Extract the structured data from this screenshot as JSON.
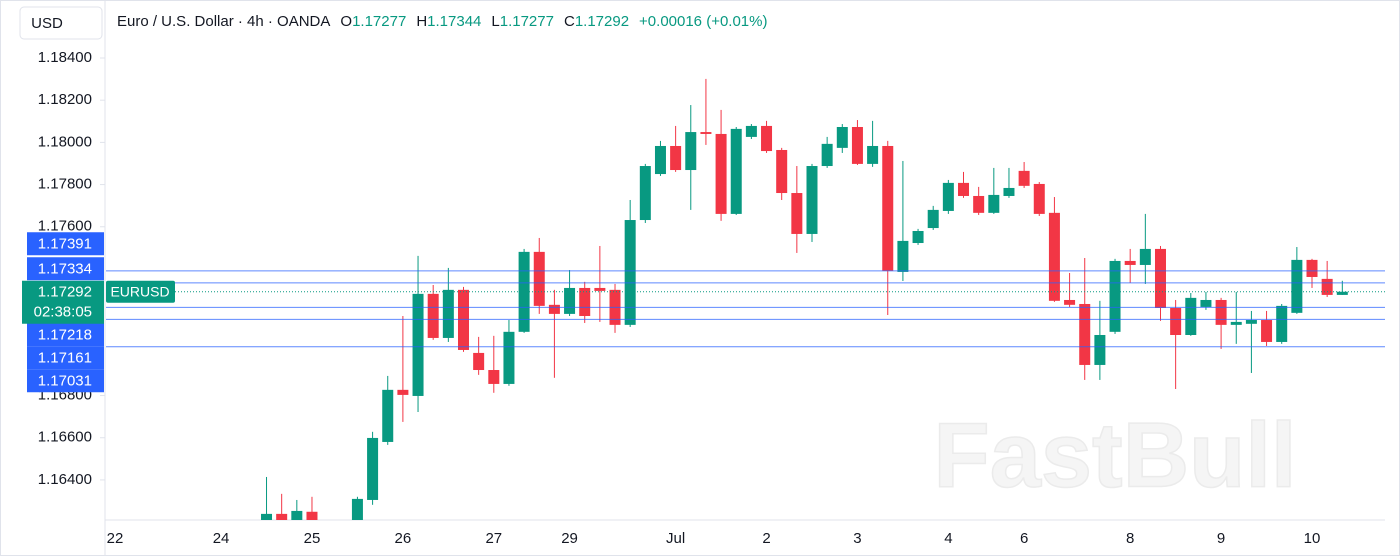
{
  "chart_data": {
    "type": "candlestick",
    "currency": "USD",
    "title": "Euro / U.S. Dollar · 4h · OANDA",
    "ohlc_labels": [
      "O",
      "H",
      "L",
      "C"
    ],
    "ohlc": [
      1.17277,
      1.17344,
      1.17277,
      1.17292
    ],
    "change_label": "+0.00016 (+0.01%)",
    "symbol": "EURUSD",
    "last_price": 1.17292,
    "countdown": "02:38:05",
    "watermark": "FastBull",
    "up_color": "#089981",
    "down_color": "#f23645",
    "line_color": "#2962ff",
    "price_lines": [
      1.17391,
      1.17334,
      1.17218,
      1.17161,
      1.17031
    ],
    "ylim": [
      1.1621,
      1.18675
    ],
    "yticks": [
      {
        "value": 1.184,
        "label": "1.18400"
      },
      {
        "value": 1.182,
        "label": "1.18200"
      },
      {
        "value": 1.18,
        "label": "1.18000"
      },
      {
        "value": 1.178,
        "label": "1.17800"
      },
      {
        "value": 1.176,
        "label": "1.17600"
      },
      {
        "value": 1.168,
        "label": "1.16800"
      },
      {
        "value": 1.166,
        "label": "1.16600"
      },
      {
        "value": 1.164,
        "label": "1.16400"
      }
    ],
    "categories": [
      "22",
      null,
      null,
      null,
      null,
      null,
      null,
      "24",
      null,
      null,
      null,
      null,
      null,
      "25",
      null,
      null,
      null,
      null,
      null,
      "26",
      null,
      null,
      null,
      null,
      null,
      "27",
      null,
      null,
      null,
      null,
      "29",
      null,
      null,
      null,
      null,
      null,
      null,
      "Jul",
      null,
      null,
      null,
      null,
      null,
      "2",
      null,
      null,
      null,
      null,
      null,
      "3",
      null,
      null,
      null,
      null,
      null,
      "4",
      null,
      null,
      null,
      null,
      "6",
      null,
      null,
      null,
      null,
      null,
      null,
      "8",
      null,
      null,
      null,
      null,
      null,
      "9",
      null,
      null,
      null,
      null,
      null,
      "10",
      null,
      null
    ],
    "candles": {
      "open": [
        null,
        null,
        null,
        null,
        null,
        null,
        null,
        null,
        null,
        null,
        1.16201,
        1.16239,
        1.16201,
        1.16249,
        null,
        null,
        1.16116,
        1.16305,
        1.1658,
        1.16827,
        1.16798,
        1.17282,
        1.17073,
        1.17301,
        1.17002,
        1.16921,
        1.16855,
        1.17102,
        1.17481,
        1.1723,
        1.17187,
        1.1731,
        1.1731,
        1.17301,
        1.17135,
        1.17632,
        1.1785,
        1.17983,
        1.17869,
        1.18049,
        1.1804,
        1.17661,
        1.18026,
        1.18078,
        1.17964,
        1.1776,
        1.17566,
        1.17888,
        1.17974,
        1.18073,
        1.17898,
        1.17983,
        1.17386,
        1.17523,
        1.17594,
        1.17675,
        1.17808,
        1.17746,
        1.17666,
        1.17746,
        1.17865,
        1.17803,
        1.17666,
        1.17253,
        1.17234,
        1.16945,
        1.17102,
        1.17438,
        1.17419,
        1.17495,
        1.17215,
        1.17087,
        1.1722,
        1.17253,
        1.17135,
        1.1714,
        1.17158,
        1.17054,
        1.17192,
        1.17443,
        1.17353,
        1.17277
      ],
      "high": [
        null,
        null,
        null,
        null,
        null,
        null,
        null,
        null,
        null,
        null,
        1.16414,
        1.16334,
        1.16305,
        1.1632,
        null,
        null,
        1.1632,
        1.16628,
        1.16893,
        1.17177,
        1.17462,
        1.17324,
        1.17405,
        1.17315,
        1.17078,
        1.17083,
        1.17158,
        1.17495,
        1.17547,
        1.17301,
        1.17395,
        1.17339,
        1.17509,
        1.17329,
        1.17727,
        1.17898,
        1.18007,
        1.18078,
        1.18177,
        1.18301,
        1.18154,
        1.18073,
        1.18087,
        1.18102,
        1.17974,
        1.17888,
        1.17898,
        1.18026,
        1.18087,
        1.18106,
        1.18102,
        1.18007,
        1.17912,
        1.1759,
        1.17699,
        1.17822,
        1.1786,
        1.17789,
        1.17879,
        1.17879,
        1.17907,
        1.17812,
        1.17741,
        1.17381,
        1.17452,
        1.17249,
        1.17448,
        1.17495,
        1.17661,
        1.17509,
        1.17253,
        1.17286,
        1.17291,
        1.17263,
        1.17291,
        1.17201,
        1.17201,
        1.17234,
        1.17504,
        1.17448,
        1.17438,
        1.17344
      ],
      "low": [
        null,
        null,
        null,
        null,
        null,
        null,
        null,
        null,
        null,
        null,
        1.16163,
        1.16163,
        1.16163,
        1.16163,
        null,
        null,
        1.16092,
        1.16282,
        1.16566,
        1.16675,
        1.16722,
        1.17064,
        1.17054,
        1.17007,
        1.16898,
        1.16813,
        1.16846,
        1.17097,
        1.17187,
        1.16884,
        1.17177,
        1.17144,
        1.17149,
        1.17097,
        1.17125,
        1.17618,
        1.17841,
        1.1786,
        1.1768,
        1.17988,
        1.17628,
        1.17656,
        1.18016,
        1.1795,
        1.17727,
        1.17476,
        1.17528,
        1.17879,
        1.1795,
        1.17893,
        1.17884,
        1.17182,
        1.17343,
        1.17514,
        1.17585,
        1.17661,
        1.17737,
        1.17656,
        1.17661,
        1.17737,
        1.17784,
        1.17651,
        1.17244,
        1.1722,
        1.16874,
        1.16874,
        1.17092,
        1.17334,
        1.17329,
        1.17154,
        1.16831,
        1.17083,
        1.17206,
        1.17021,
        1.17045,
        1.16907,
        1.17035,
        1.17045,
        1.17187,
        1.1731,
        1.17267,
        1.17277
      ],
      "close": [
        null,
        null,
        null,
        null,
        null,
        null,
        null,
        null,
        null,
        null,
        1.16239,
        1.16201,
        1.16253,
        1.16201,
        null,
        null,
        1.1631,
        1.16599,
        1.16827,
        1.16803,
        1.17282,
        1.17073,
        1.17301,
        1.17016,
        1.16921,
        1.16855,
        1.17102,
        1.17481,
        1.17225,
        1.17187,
        1.1731,
        1.17177,
        1.17296,
        1.17135,
        1.17632,
        1.17888,
        1.17983,
        1.17869,
        1.18049,
        1.1804,
        1.17661,
        1.18064,
        1.18078,
        1.17959,
        1.1776,
        1.17566,
        1.17888,
        1.17993,
        1.18073,
        1.17898,
        1.17983,
        1.17391,
        1.17533,
        1.1758,
        1.1768,
        1.17808,
        1.17746,
        1.17666,
        1.17751,
        1.17784,
        1.17794,
        1.17661,
        1.17249,
        1.1723,
        1.16945,
        1.17087,
        1.17438,
        1.17419,
        1.17495,
        1.17215,
        1.17087,
        1.17263,
        1.17253,
        1.17135,
        1.17149,
        1.17158,
        1.17054,
        1.17225,
        1.17443,
        1.17362,
        1.17277,
        1.17292
      ]
    }
  }
}
